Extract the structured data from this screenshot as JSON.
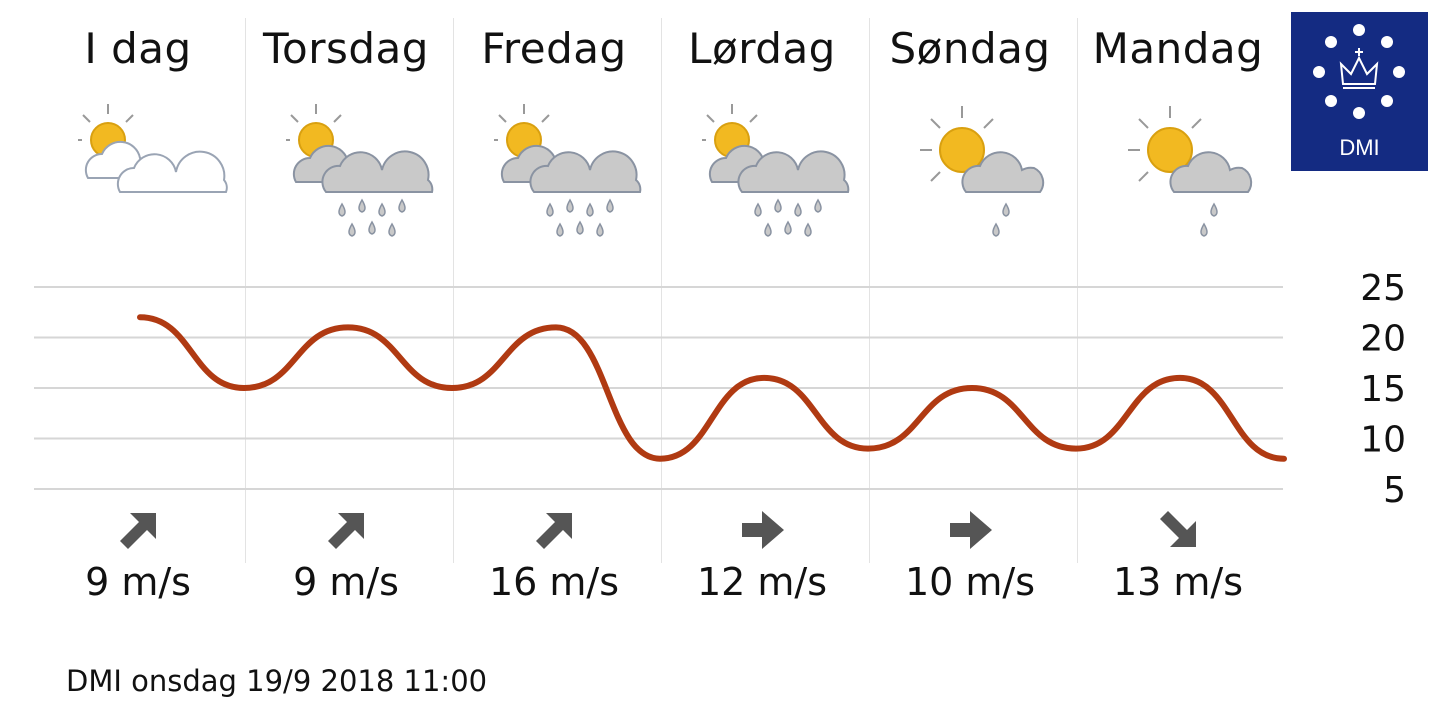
{
  "days": [
    {
      "name": "I dag",
      "icon": "partly-cloudy-icon",
      "wind_speed": "9 m/s",
      "wind_dir": "northeast-arrow-icon"
    },
    {
      "name": "Torsdag",
      "icon": "sun-cloud-heavy-rain-icon",
      "wind_speed": "9 m/s",
      "wind_dir": "northeast-arrow-icon"
    },
    {
      "name": "Fredag",
      "icon": "sun-cloud-heavy-rain-icon",
      "wind_speed": "16 m/s",
      "wind_dir": "northeast-arrow-icon"
    },
    {
      "name": "Lørdag",
      "icon": "sun-cloud-heavy-rain-icon",
      "wind_speed": "12 m/s",
      "wind_dir": "east-arrow-icon"
    },
    {
      "name": "Søndag",
      "icon": "sun-cloud-light-rain-icon",
      "wind_speed": "10 m/s",
      "wind_dir": "east-arrow-icon"
    },
    {
      "name": "Mandag",
      "icon": "sun-cloud-light-rain-icon",
      "wind_speed": "13 m/s",
      "wind_dir": "southeast-arrow-icon"
    }
  ],
  "logo": {
    "text": "DMI",
    "icon": "crown-stars-icon"
  },
  "footer": {
    "text": "DMI onsdag 19/9 2018  11:00"
  },
  "colors": {
    "line": "#b03a12",
    "grid": "#d6d6d6",
    "logo_bg": "#142b82",
    "arrow": "#555555"
  },
  "chart_data": {
    "type": "line",
    "y_ticks": [
      "25",
      "20",
      "15",
      "10",
      "5"
    ],
    "ylim": [
      5,
      25
    ],
    "x_days": [
      "I dag",
      "Torsdag",
      "Fredag",
      "Lørdag",
      "Søndag",
      "Mandag"
    ],
    "series": [
      {
        "x": [
          0.0,
          0.5,
          1.0,
          1.5,
          2.0,
          2.5,
          3.0,
          3.5,
          4.0,
          4.5,
          5.0,
          5.5
        ],
        "values": [
          22,
          15,
          21,
          15,
          21,
          8,
          16,
          9,
          15,
          9,
          16,
          8
        ]
      }
    ],
    "grid": true
  }
}
